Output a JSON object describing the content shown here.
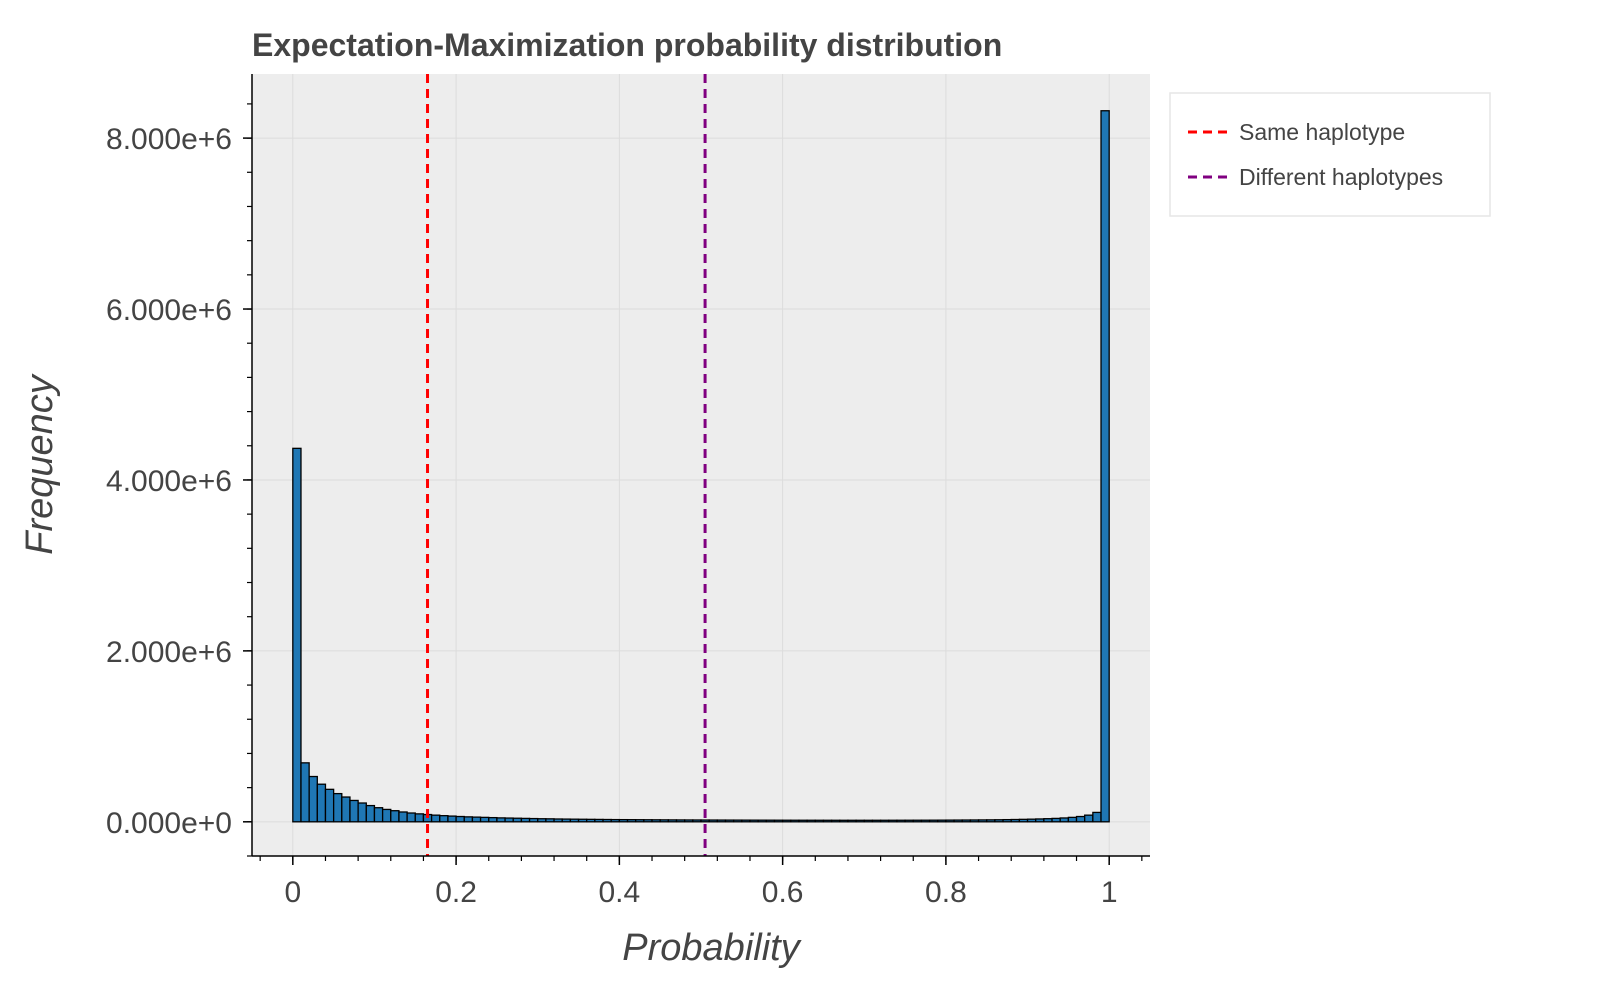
{
  "chart_data": {
    "type": "bar",
    "title": "Expectation-Maximization probability distribution",
    "xlabel": "Probability",
    "ylabel": "Frequency",
    "xlim": [
      -0.05,
      1.05
    ],
    "ylim": [
      -400000,
      8750000
    ],
    "x_ticks": [
      {
        "value": 0,
        "label": "0"
      },
      {
        "value": 0.2,
        "label": "0.2"
      },
      {
        "value": 0.4,
        "label": "0.4"
      },
      {
        "value": 0.6,
        "label": "0.6"
      },
      {
        "value": 0.8,
        "label": "0.8"
      },
      {
        "value": 1,
        "label": "1"
      }
    ],
    "y_ticks": [
      {
        "value": 0,
        "label": "0.000e+0"
      },
      {
        "value": 2000000,
        "label": "2.000e+6"
      },
      {
        "value": 4000000,
        "label": "4.000e+6"
      },
      {
        "value": 6000000,
        "label": "6.000e+6"
      },
      {
        "value": 8000000,
        "label": "8.000e+6"
      }
    ],
    "grid": true,
    "bin_width": 0.01,
    "bin_start": 0,
    "values": [
      4370000,
      690000,
      530000,
      440000,
      380000,
      330000,
      290000,
      250000,
      220000,
      190000,
      165000,
      145000,
      130000,
      115000,
      103000,
      93000,
      85000,
      78000,
      72000,
      67000,
      62000,
      58000,
      55000,
      52000,
      49000,
      46000,
      44000,
      42000,
      40000,
      38000,
      36000,
      35000,
      33000,
      32000,
      31000,
      30000,
      29000,
      28000,
      27000,
      26000,
      25500,
      25000,
      24500,
      24000,
      23500,
      23000,
      22500,
      22000,
      21700,
      21400,
      21000,
      20800,
      20500,
      20200,
      20000,
      19800,
      19600,
      19400,
      19200,
      19000,
      18800,
      18600,
      18500,
      18400,
      18300,
      18200,
      18100,
      18000,
      18000,
      18000,
      18000,
      18100,
      18200,
      18300,
      18400,
      18600,
      18800,
      19000,
      19300,
      19600,
      20000,
      20500,
      21000,
      21600,
      22300,
      23000,
      24000,
      25500,
      27000,
      29000,
      31000,
      33500,
      36500,
      40000,
      45000,
      52000,
      62000,
      78000,
      110000,
      8320000
    ],
    "bar_color": "#1f77b4",
    "bar_edge": "#000000",
    "background": "#ededed",
    "vlines": [
      {
        "name": "Same haplotype",
        "x": 0.165,
        "color": "#ff0000"
      },
      {
        "name": "Different haplotypes",
        "x": 0.505,
        "color": "#800080"
      }
    ],
    "legend_position": "outside-top-right"
  }
}
